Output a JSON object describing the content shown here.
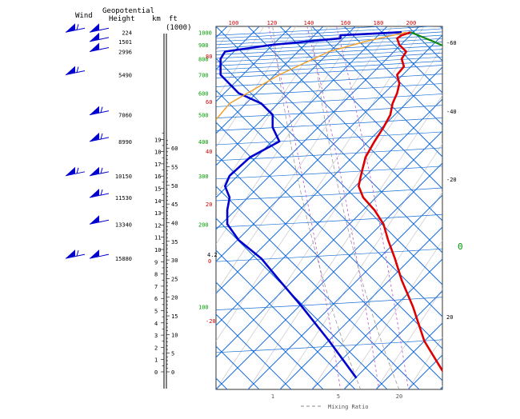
{
  "header": {
    "wind": "Wind",
    "geo1": "Geopotential",
    "geo2": "Height",
    "km": "km",
    "ft": "ft",
    "ft_unit": "(1000)"
  },
  "axis": {
    "km_ticks": [
      "0",
      "1",
      "2",
      "3",
      "4",
      "5",
      "6",
      "7",
      "8",
      "9",
      "10",
      "11",
      "12",
      "13",
      "14",
      "15",
      "16",
      "17",
      "18",
      "19"
    ],
    "ft_ticks": [
      "0",
      "5",
      "10",
      "15",
      "20",
      "25",
      "30",
      "35",
      "40",
      "45",
      "50",
      "55",
      "60"
    ]
  },
  "geopotential_heights": [
    {
      "p": 1000,
      "label": "224"
    },
    {
      "p": 925,
      "label": "1501"
    },
    {
      "p": 850,
      "label": "2996"
    },
    {
      "p": 700,
      "label": "5490"
    },
    {
      "p": 500,
      "label": "7060"
    },
    {
      "p": 400,
      "label": "8990"
    },
    {
      "p": 300,
      "label": "10150"
    },
    {
      "p": 250,
      "label": "11530"
    },
    {
      "p": 200,
      "label": "13340"
    },
    {
      "p": 150,
      "label": "15880"
    }
  ],
  "chart_data": {
    "type": "line",
    "title": "",
    "pressure_labels": [
      "1000",
      "900",
      "800",
      "700",
      "600",
      "500",
      "400",
      "300",
      "200",
      "100"
    ],
    "top_temp_labels": [
      "100",
      "120",
      "140",
      "160",
      "180",
      "200"
    ],
    "left_temp_labels": [
      "80",
      "60",
      "40",
      "20",
      "-20"
    ],
    "left_temp_label_zero": "0",
    "level_label": "4.2",
    "right_labels": [
      "-60",
      "-40",
      "-20",
      "20"
    ],
    "bottom_labels": [
      "1",
      "5",
      "20"
    ],
    "mixing_ratio_legend": "Mixing Ratio",
    "zero_label": "0",
    "series": [
      {
        "color": "#dd0000",
        "points": [
          [
            1000,
            0.86
          ],
          [
            975,
            0.82
          ],
          [
            950,
            0.8
          ],
          [
            900,
            0.81
          ],
          [
            850,
            0.84
          ],
          [
            800,
            0.82
          ],
          [
            750,
            0.83
          ],
          [
            700,
            0.8
          ],
          [
            650,
            0.81
          ],
          [
            600,
            0.8
          ],
          [
            550,
            0.78
          ],
          [
            500,
            0.77
          ],
          [
            450,
            0.74
          ],
          [
            400,
            0.7
          ],
          [
            350,
            0.66
          ],
          [
            300,
            0.64
          ],
          [
            275,
            0.63
          ],
          [
            250,
            0.65
          ],
          [
            225,
            0.7
          ],
          [
            200,
            0.74
          ],
          [
            175,
            0.76
          ],
          [
            150,
            0.79
          ],
          [
            125,
            0.82
          ],
          [
            100,
            0.87
          ],
          [
            75,
            0.92
          ],
          [
            55,
            1.02
          ]
        ]
      },
      {
        "color": "#0000cc",
        "points": [
          [
            1000,
            0.82
          ],
          [
            975,
            0.55
          ],
          [
            950,
            0.55
          ],
          [
            925,
            0.4
          ],
          [
            900,
            0.25
          ],
          [
            850,
            0.04
          ],
          [
            800,
            0.02
          ],
          [
            700,
            0.02
          ],
          [
            600,
            0.1
          ],
          [
            550,
            0.2
          ],
          [
            500,
            0.25
          ],
          [
            450,
            0.25
          ],
          [
            400,
            0.28
          ],
          [
            350,
            0.15
          ],
          [
            300,
            0.06
          ],
          [
            275,
            0.04
          ],
          [
            250,
            0.06
          ],
          [
            225,
            0.05
          ],
          [
            200,
            0.05
          ],
          [
            175,
            0.1
          ],
          [
            150,
            0.2
          ],
          [
            125,
            0.28
          ],
          [
            100,
            0.38
          ],
          [
            75,
            0.5
          ],
          [
            55,
            0.62
          ]
        ]
      },
      {
        "color": "#f0a030",
        "points": [
          [
            1000,
            0.84
          ],
          [
            925,
            0.66
          ],
          [
            850,
            0.5
          ],
          [
            700,
            0.28
          ],
          [
            550,
            0.06
          ],
          [
            480,
            0.0
          ]
        ]
      },
      {
        "color": "#118811",
        "points": [
          [
            1000,
            0.86
          ],
          [
            925,
            0.96
          ],
          [
            850,
            1.06
          ],
          [
            700,
            1.22
          ],
          [
            600,
            1.36
          ],
          [
            500,
            1.5
          ]
        ]
      }
    ]
  }
}
